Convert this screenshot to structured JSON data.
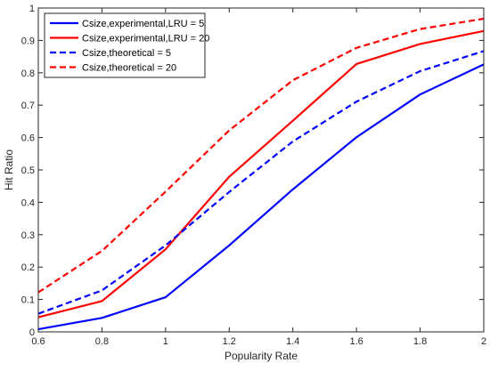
{
  "chart_data": {
    "type": "line",
    "title": "",
    "xlabel": "Popularity Rate",
    "ylabel": "Hit Ratio",
    "xlim": [
      0.6,
      2
    ],
    "ylim": [
      0,
      1
    ],
    "xticks": [
      0.6,
      0.8,
      1,
      1.2,
      1.4,
      1.6,
      1.8,
      2
    ],
    "xtick_labels": [
      "0.6",
      "0.8",
      "1",
      "1.2",
      "1.4",
      "1.6",
      "1.8",
      "2"
    ],
    "yticks": [
      0,
      0.1,
      0.2,
      0.3,
      0.4,
      0.5,
      0.6,
      0.7,
      0.8,
      0.9,
      1
    ],
    "ytick_labels": [
      "0",
      "0.1",
      "0.2",
      "0.3",
      "0.4",
      "0.5",
      "0.6",
      "0.7",
      "0.8",
      "0.9",
      "1"
    ],
    "grid": false,
    "legend_position": "top-left",
    "x": [
      0.6,
      0.8,
      1.0,
      1.2,
      1.4,
      1.6,
      1.8,
      2.0
    ],
    "series": [
      {
        "name": "Csize,experimental,LRU = 5",
        "color": "#0000ff",
        "style": "solid",
        "values": [
          0.008,
          0.043,
          0.107,
          0.267,
          0.44,
          0.601,
          0.733,
          0.826
        ]
      },
      {
        "name": "Csize,experimental,LRU = 20",
        "color": "#ff0000",
        "style": "solid",
        "values": [
          0.045,
          0.095,
          0.255,
          0.479,
          0.652,
          0.827,
          0.889,
          0.929
        ]
      },
      {
        "name": "Csize,theoretical = 5",
        "color": "#0000ff",
        "style": "dashed",
        "values": [
          0.056,
          0.128,
          0.267,
          0.432,
          0.588,
          0.711,
          0.805,
          0.867
        ]
      },
      {
        "name": "Csize,theoretical = 20",
        "color": "#ff0000",
        "style": "dashed",
        "values": [
          0.122,
          0.25,
          0.433,
          0.622,
          0.777,
          0.877,
          0.935,
          0.967
        ]
      }
    ]
  }
}
